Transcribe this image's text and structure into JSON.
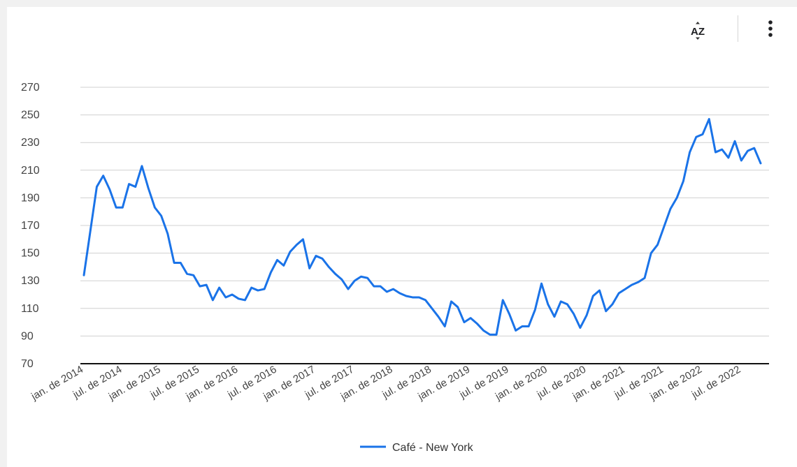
{
  "toolbar": {
    "sort_icon": "sort-az-icon",
    "menu_icon": "more-vert-icon"
  },
  "chart_data": {
    "type": "line",
    "x_start": "2014-01",
    "x_step": "month",
    "ylim": [
      70,
      270
    ],
    "y_ticks": [
      70,
      90,
      110,
      130,
      150,
      170,
      190,
      210,
      230,
      250,
      270
    ],
    "x_tick_labels": [
      "jan. de 2014",
      "jul. de 2014",
      "jan. de 2015",
      "jul. de 2015",
      "jan. de 2016",
      "jul. de 2016",
      "jan. de 2017",
      "jul. de 2017",
      "jan. de 2018",
      "jul. de 2018",
      "jan. de 2019",
      "jul. de 2019",
      "jan. de 2020",
      "jul. de 2020",
      "jan. de 2021",
      "jul. de 2021",
      "jan. de 2022",
      "jul. de 2022"
    ],
    "grid": true,
    "legend": "bottom",
    "color": "#1a73e8",
    "series": [
      {
        "name": "Café - New York",
        "values": [
          134,
          166,
          198,
          206,
          196,
          183,
          183,
          200,
          198,
          213,
          197,
          183,
          177,
          164,
          143,
          143,
          135,
          134,
          126,
          127,
          116,
          125,
          118,
          120,
          117,
          116,
          125,
          123,
          124,
          136,
          145,
          141,
          151,
          156,
          160,
          139,
          148,
          146,
          140,
          135,
          131,
          124,
          130,
          133,
          132,
          126,
          126,
          122,
          124,
          121,
          119,
          118,
          118,
          116,
          110,
          104,
          97,
          115,
          111,
          100,
          103,
          99,
          94,
          91,
          91,
          116,
          106,
          94,
          97,
          97,
          109,
          128,
          113,
          104,
          115,
          113,
          106,
          96,
          105,
          119,
          123,
          108,
          113,
          121,
          124,
          127,
          129,
          132,
          150,
          156,
          169,
          182,
          190,
          202,
          223,
          234,
          236,
          247,
          223,
          225,
          219,
          231,
          217,
          224,
          226,
          215
        ]
      }
    ]
  }
}
